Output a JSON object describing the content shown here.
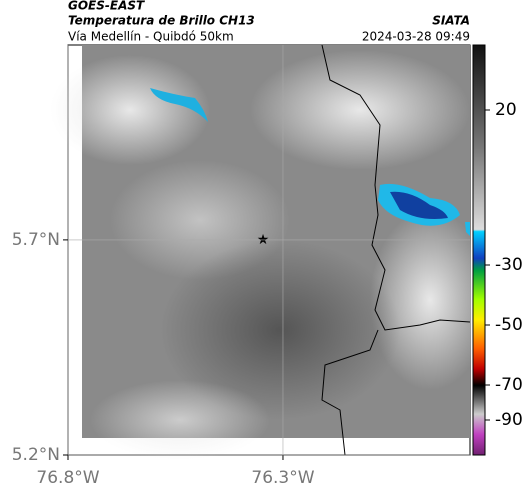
{
  "header": {
    "satellite": "GOES-EAST",
    "product": "Temperatura de Brillo CH13",
    "route": "Vía Medellín - Quibdó 50km",
    "source": "SIATA",
    "timestamp": "2024-03-28 09:49"
  },
  "map": {
    "xlim": [
      -76.8,
      -75.865
    ],
    "ylim": [
      5.2,
      6.153
    ],
    "xticks": [
      {
        "value": -76.8,
        "label": "76.8°W"
      },
      {
        "value": -76.3,
        "label": "76.3°W"
      }
    ],
    "yticks": [
      {
        "value": 5.7,
        "label": "5.7°N"
      },
      {
        "value": 5.2,
        "label": "5.2°N"
      }
    ],
    "grid": true
  },
  "colorbar": {
    "ticks": [
      20,
      -30,
      -50,
      -70,
      -90
    ]
  }
}
